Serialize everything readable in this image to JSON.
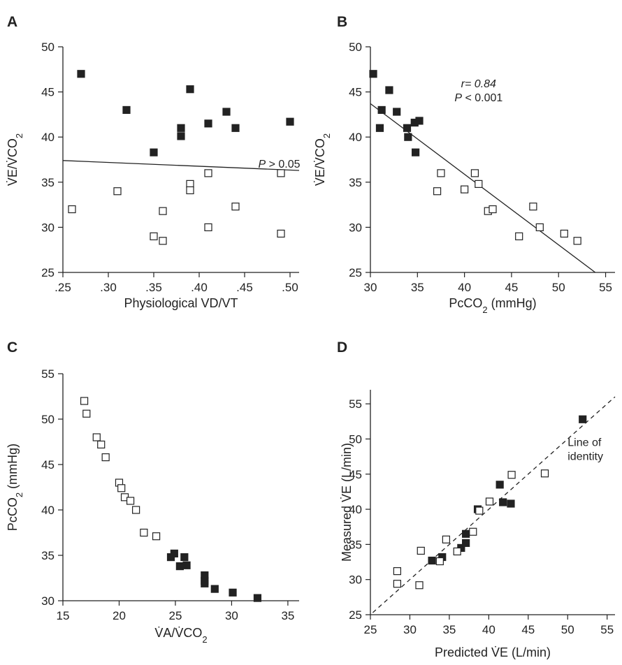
{
  "chart_data": [
    {
      "panel": "A",
      "type": "scatter",
      "xlabel": "Physiological VD/VT",
      "ylabel": "V̇E/V̇CO2",
      "xlim": [
        0.25,
        0.51
      ],
      "ylim": [
        25,
        50
      ],
      "xticks": [
        0.25,
        0.3,
        0.35,
        0.4,
        0.45,
        0.5
      ],
      "xtick_labels": [
        ".25",
        ".30",
        ".35",
        ".40",
        ".45",
        ".50"
      ],
      "yticks": [
        25,
        30,
        35,
        40,
        45,
        50
      ],
      "ytick_labels": [
        "25",
        "30",
        "35",
        "40",
        "45",
        "50"
      ],
      "series": [
        {
          "marker": "filled-square",
          "points": [
            [
              0.27,
              47.0
            ],
            [
              0.32,
              43.0
            ],
            [
              0.35,
              38.3
            ],
            [
              0.38,
              41.0
            ],
            [
              0.38,
              40.1
            ],
            [
              0.39,
              45.3
            ],
            [
              0.41,
              41.5
            ],
            [
              0.43,
              42.8
            ],
            [
              0.44,
              41.0
            ],
            [
              0.5,
              41.7
            ]
          ]
        },
        {
          "marker": "open-square",
          "points": [
            [
              0.26,
              32.0
            ],
            [
              0.31,
              34.0
            ],
            [
              0.35,
              29.0
            ],
            [
              0.36,
              28.5
            ],
            [
              0.36,
              31.8
            ],
            [
              0.39,
              34.8
            ],
            [
              0.39,
              34.1
            ],
            [
              0.41,
              36.0
            ],
            [
              0.41,
              30.0
            ],
            [
              0.44,
              32.3
            ],
            [
              0.49,
              36.0
            ],
            [
              0.49,
              29.3
            ]
          ]
        }
      ],
      "lines": [
        {
          "style": "solid",
          "from": [
            0.25,
            37.4
          ],
          "to": [
            0.51,
            36.3
          ]
        }
      ],
      "annotations": [
        {
          "lines": [
            "P > 0.05"
          ],
          "at": [
            0.465,
            36.6
          ],
          "anchor": "start"
        }
      ]
    },
    {
      "panel": "B",
      "type": "scatter",
      "xlabel": "PcCO2 (mmHg)",
      "ylabel": "V̇E/V̇CO2",
      "xlim": [
        30,
        56
      ],
      "ylim": [
        25,
        50
      ],
      "xticks": [
        30,
        35,
        40,
        45,
        50,
        55
      ],
      "xtick_labels": [
        "30",
        "35",
        "40",
        "45",
        "50",
        "55"
      ],
      "yticks": [
        25,
        30,
        35,
        40,
        45,
        50
      ],
      "ytick_labels": [
        "25",
        "30",
        "35",
        "40",
        "45",
        "50"
      ],
      "series": [
        {
          "marker": "filled-square",
          "points": [
            [
              30.3,
              47.0
            ],
            [
              31.0,
              41.0
            ],
            [
              31.2,
              43.0
            ],
            [
              32.0,
              45.2
            ],
            [
              32.8,
              42.8
            ],
            [
              33.9,
              41.0
            ],
            [
              34.0,
              40.0
            ],
            [
              34.7,
              41.6
            ],
            [
              34.8,
              38.3
            ],
            [
              35.2,
              41.8
            ]
          ]
        },
        {
          "marker": "open-square",
          "points": [
            [
              37.1,
              34.0
            ],
            [
              37.5,
              36.0
            ],
            [
              40.0,
              34.2
            ],
            [
              41.1,
              36.0
            ],
            [
              41.5,
              34.8
            ],
            [
              42.5,
              31.8
            ],
            [
              43.0,
              32.0
            ],
            [
              45.8,
              29.0
            ],
            [
              47.3,
              32.3
            ],
            [
              48.0,
              30.0
            ],
            [
              50.6,
              29.3
            ],
            [
              52.0,
              28.5
            ]
          ]
        }
      ],
      "lines": [
        {
          "style": "solid",
          "from": [
            30,
            43.7
          ],
          "to": [
            53.9,
            25
          ]
        }
      ],
      "annotations": [
        {
          "lines": [
            "r= 0.84",
            "P < 0.001"
          ],
          "at": [
            41.5,
            45.5
          ],
          "anchor": "middle"
        }
      ]
    },
    {
      "panel": "C",
      "type": "scatter",
      "xlabel": "V̇A/V̇CO2",
      "ylabel": "PcCO2 (mmHg)",
      "xlim": [
        15,
        36
      ],
      "ylim": [
        30,
        55
      ],
      "xticks": [
        15,
        20,
        25,
        30,
        35
      ],
      "xtick_labels": [
        "15",
        "20",
        "25",
        "30",
        "35"
      ],
      "yticks": [
        30,
        35,
        40,
        45,
        50,
        55
      ],
      "ytick_labels": [
        "30",
        "35",
        "40",
        "45",
        "50",
        "55"
      ],
      "series": [
        {
          "marker": "filled-square",
          "points": [
            [
              24.6,
              34.8
            ],
            [
              24.9,
              35.2
            ],
            [
              25.4,
              33.8
            ],
            [
              25.8,
              34.8
            ],
            [
              26.0,
              33.9
            ],
            [
              27.6,
              32.8
            ],
            [
              27.6,
              32.2
            ],
            [
              27.6,
              31.9
            ],
            [
              28.5,
              31.3
            ],
            [
              30.1,
              30.9
            ],
            [
              32.3,
              30.3
            ]
          ]
        },
        {
          "marker": "open-square",
          "points": [
            [
              16.9,
              52.0
            ],
            [
              17.1,
              50.6
            ],
            [
              18.0,
              48.0
            ],
            [
              18.4,
              47.2
            ],
            [
              18.8,
              45.8
            ],
            [
              20.0,
              43.0
            ],
            [
              20.2,
              42.4
            ],
            [
              20.5,
              41.4
            ],
            [
              21.0,
              41.0
            ],
            [
              21.5,
              40.0
            ],
            [
              22.2,
              37.5
            ],
            [
              23.3,
              37.1
            ]
          ]
        }
      ],
      "lines": [],
      "annotations": []
    },
    {
      "panel": "D",
      "type": "scatter",
      "xlabel": "Predicted V̇E (L/min)",
      "ylabel": "Measured V̇E (L/min)",
      "xlim": [
        25,
        56
      ],
      "ylim": [
        25,
        57
      ],
      "xticks": [
        25,
        30,
        35,
        40,
        45,
        50,
        55
      ],
      "xtick_labels": [
        "25",
        "30",
        "35",
        "40",
        "45",
        "50",
        "55"
      ],
      "yticks": [
        25,
        30,
        35,
        40,
        45,
        50,
        55
      ],
      "ytick_labels": [
        "25",
        "30",
        "35",
        "40",
        "45",
        "50",
        "55"
      ],
      "series": [
        {
          "marker": "filled-square",
          "points": [
            [
              32.8,
              32.7
            ],
            [
              34.1,
              33.2
            ],
            [
              36.5,
              34.5
            ],
            [
              37.1,
              36.5
            ],
            [
              37.1,
              35.2
            ],
            [
              38.6,
              40.0
            ],
            [
              41.4,
              43.5
            ],
            [
              41.8,
              41.0
            ],
            [
              42.8,
              40.8
            ],
            [
              51.9,
              52.8
            ]
          ]
        },
        {
          "marker": "open-square",
          "points": [
            [
              28.4,
              31.2
            ],
            [
              28.4,
              29.4
            ],
            [
              31.2,
              29.2
            ],
            [
              31.4,
              34.1
            ],
            [
              34.6,
              35.7
            ],
            [
              33.8,
              32.6
            ],
            [
              36.0,
              34.0
            ],
            [
              38.0,
              36.8
            ],
            [
              38.8,
              39.8
            ],
            [
              40.1,
              41.1
            ],
            [
              42.9,
              44.9
            ],
            [
              47.1,
              45.1
            ]
          ]
        }
      ],
      "lines": [
        {
          "style": "dashed",
          "from": [
            25.3,
            25.3
          ],
          "to": [
            56,
            56
          ]
        }
      ],
      "annotations": [
        {
          "lines": [
            "Line of",
            "identity"
          ],
          "at": [
            50.0,
            49.0
          ],
          "anchor": "start"
        }
      ]
    }
  ],
  "panels_text": {
    "A": {
      "letter": "A",
      "xlabel": "Physiological VD/VT",
      "ylabel_parts": [
        "V̇E/V̇CO",
        "2"
      ],
      "pgt": "P > 0.05"
    },
    "B": {
      "letter": "B",
      "xlabel_parts": [
        "PcCO",
        "2",
        " (mmHg)"
      ],
      "ylabel_parts": [
        "V̇E/V̇CO",
        "2"
      ],
      "r": "r= 0.84",
      "p": "P < 0.001"
    },
    "C": {
      "letter": "C",
      "xlabel_parts": [
        "V̇A/V̇CO",
        "2"
      ],
      "ylabel_parts": [
        "PcCO",
        "2",
        " (mmHg)"
      ]
    },
    "D": {
      "letter": "D",
      "xlabel": "Predicted V̇E (L/min)",
      "ylabel": "Measured V̇E (L/min)",
      "identity1": "Line of",
      "identity2": "identity"
    }
  }
}
